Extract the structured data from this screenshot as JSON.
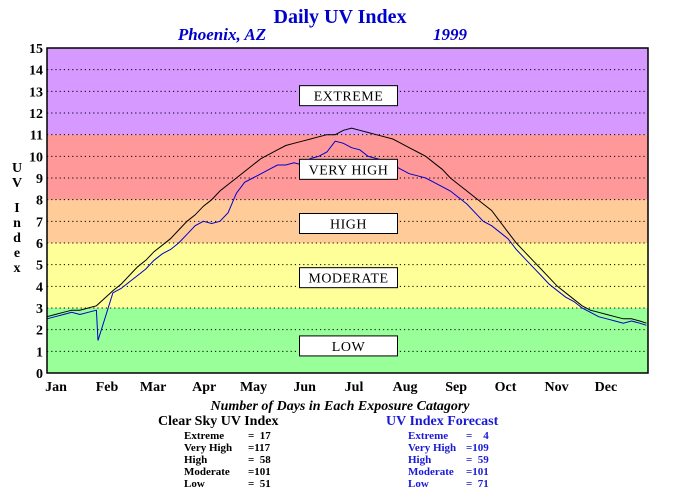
{
  "header": {
    "title": "Daily UV Index",
    "location": "Phoenix, AZ",
    "year": "1999"
  },
  "chart_data": {
    "type": "line",
    "title": "Daily UV Index",
    "ylabel": "UV Index",
    "xlabel": "",
    "xlim": [
      0,
      365
    ],
    "ylim": [
      0,
      15
    ],
    "y_ticks": [
      0,
      1,
      2,
      3,
      4,
      5,
      6,
      7,
      8,
      9,
      10,
      11,
      12,
      13,
      14,
      15
    ],
    "months": [
      {
        "label": "Jan",
        "day": 0
      },
      {
        "label": "Feb",
        "day": 31
      },
      {
        "label": "Mar",
        "day": 59
      },
      {
        "label": "Apr",
        "day": 90
      },
      {
        "label": "May",
        "day": 120
      },
      {
        "label": "Jun",
        "day": 151
      },
      {
        "label": "Jul",
        "day": 181
      },
      {
        "label": "Aug",
        "day": 212
      },
      {
        "label": "Sep",
        "day": 243
      },
      {
        "label": "Oct",
        "day": 273
      },
      {
        "label": "Nov",
        "day": 304
      },
      {
        "label": "Dec",
        "day": 334
      }
    ],
    "grid": "dotted horizontal at each integer",
    "bands": [
      {
        "label": "LOW",
        "from": 0,
        "to": 3,
        "color": "#99ff99",
        "label_y": 1.25
      },
      {
        "label": "MODERATE",
        "from": 3,
        "to": 6,
        "color": "#ffff99",
        "label_y": 4.4
      },
      {
        "label": "HIGH",
        "from": 6,
        "to": 8,
        "color": "#ffcc99",
        "label_y": 6.9
      },
      {
        "label": "VERY HIGH",
        "from": 8,
        "to": 11,
        "color": "#ff9999",
        "label_y": 9.4
      },
      {
        "label": "EXTREME",
        "from": 11,
        "to": 15,
        "color": "#d699ff",
        "label_y": 12.8
      }
    ],
    "series": [
      {
        "name": "Clear Sky UV Index",
        "color": "#000000",
        "points": [
          [
            0,
            2.6
          ],
          [
            5,
            2.7
          ],
          [
            10,
            2.8
          ],
          [
            15,
            2.9
          ],
          [
            20,
            2.9
          ],
          [
            25,
            3.0
          ],
          [
            30,
            3.1
          ],
          [
            40,
            3.8
          ],
          [
            45,
            4.1
          ],
          [
            50,
            4.5
          ],
          [
            55,
            4.9
          ],
          [
            60,
            5.2
          ],
          [
            65,
            5.6
          ],
          [
            70,
            5.9
          ],
          [
            75,
            6.2
          ],
          [
            80,
            6.6
          ],
          [
            85,
            7.0
          ],
          [
            90,
            7.3
          ],
          [
            95,
            7.7
          ],
          [
            100,
            8.0
          ],
          [
            105,
            8.4
          ],
          [
            110,
            8.7
          ],
          [
            115,
            9.0
          ],
          [
            120,
            9.3
          ],
          [
            125,
            9.6
          ],
          [
            130,
            9.9
          ],
          [
            135,
            10.1
          ],
          [
            140,
            10.3
          ],
          [
            145,
            10.5
          ],
          [
            150,
            10.6
          ],
          [
            155,
            10.7
          ],
          [
            160,
            10.8
          ],
          [
            165,
            10.9
          ],
          [
            170,
            11.0
          ],
          [
            175,
            11.0
          ],
          [
            180,
            11.2
          ],
          [
            185,
            11.3
          ],
          [
            190,
            11.2
          ],
          [
            195,
            11.1
          ],
          [
            200,
            11.0
          ],
          [
            205,
            10.9
          ],
          [
            210,
            10.8
          ],
          [
            215,
            10.6
          ],
          [
            220,
            10.4
          ],
          [
            225,
            10.2
          ],
          [
            230,
            10.0
          ],
          [
            235,
            9.7
          ],
          [
            240,
            9.4
          ],
          [
            245,
            9.0
          ],
          [
            250,
            8.7
          ],
          [
            255,
            8.4
          ],
          [
            260,
            8.1
          ],
          [
            265,
            7.8
          ],
          [
            270,
            7.5
          ],
          [
            275,
            7.0
          ],
          [
            280,
            6.5
          ],
          [
            285,
            6.0
          ],
          [
            290,
            5.6
          ],
          [
            295,
            5.2
          ],
          [
            300,
            4.8
          ],
          [
            305,
            4.4
          ],
          [
            310,
            4.0
          ],
          [
            315,
            3.7
          ],
          [
            320,
            3.4
          ],
          [
            325,
            3.1
          ],
          [
            330,
            2.9
          ],
          [
            335,
            2.8
          ],
          [
            340,
            2.7
          ],
          [
            345,
            2.6
          ],
          [
            350,
            2.5
          ],
          [
            355,
            2.5
          ],
          [
            360,
            2.4
          ],
          [
            364,
            2.3
          ]
        ]
      },
      {
        "name": "UV Index Forecast",
        "color": "#0000cc",
        "points": [
          [
            0,
            2.5
          ],
          [
            5,
            2.6
          ],
          [
            10,
            2.7
          ],
          [
            15,
            2.8
          ],
          [
            20,
            2.7
          ],
          [
            25,
            2.8
          ],
          [
            30,
            2.9
          ],
          [
            31,
            1.5
          ],
          [
            40,
            3.7
          ],
          [
            45,
            3.9
          ],
          [
            50,
            4.2
          ],
          [
            55,
            4.5
          ],
          [
            60,
            4.8
          ],
          [
            65,
            5.2
          ],
          [
            70,
            5.5
          ],
          [
            75,
            5.7
          ],
          [
            80,
            6.0
          ],
          [
            85,
            6.4
          ],
          [
            90,
            6.8
          ],
          [
            95,
            7.0
          ],
          [
            100,
            6.9
          ],
          [
            105,
            7.0
          ],
          [
            110,
            7.4
          ],
          [
            115,
            8.3
          ],
          [
            120,
            8.8
          ],
          [
            125,
            9.0
          ],
          [
            130,
            9.2
          ],
          [
            135,
            9.4
          ],
          [
            140,
            9.6
          ],
          [
            145,
            9.6
          ],
          [
            150,
            9.7
          ],
          [
            155,
            9.6
          ],
          [
            160,
            9.9
          ],
          [
            165,
            10.0
          ],
          [
            170,
            10.2
          ],
          [
            175,
            10.7
          ],
          [
            180,
            10.6
          ],
          [
            185,
            10.4
          ],
          [
            190,
            10.3
          ],
          [
            195,
            10.0
          ],
          [
            200,
            9.9
          ],
          [
            205,
            9.8
          ],
          [
            210,
            9.6
          ],
          [
            215,
            9.4
          ],
          [
            220,
            9.2
          ],
          [
            225,
            9.1
          ],
          [
            230,
            9.0
          ],
          [
            235,
            8.8
          ],
          [
            240,
            8.6
          ],
          [
            245,
            8.4
          ],
          [
            250,
            8.1
          ],
          [
            255,
            7.8
          ],
          [
            260,
            7.4
          ],
          [
            265,
            7.0
          ],
          [
            270,
            6.8
          ],
          [
            275,
            6.5
          ],
          [
            280,
            6.2
          ],
          [
            285,
            5.7
          ],
          [
            290,
            5.3
          ],
          [
            295,
            4.9
          ],
          [
            300,
            4.5
          ],
          [
            305,
            4.1
          ],
          [
            310,
            3.8
          ],
          [
            315,
            3.5
          ],
          [
            320,
            3.3
          ],
          [
            325,
            3.0
          ],
          [
            330,
            2.8
          ],
          [
            335,
            2.6
          ],
          [
            340,
            2.5
          ],
          [
            345,
            2.4
          ],
          [
            350,
            2.3
          ],
          [
            355,
            2.4
          ],
          [
            360,
            2.3
          ],
          [
            364,
            2.2
          ]
        ]
      }
    ]
  },
  "footnote": "Number of Days in Each Exposure Catagory",
  "stats": {
    "clear_sky": {
      "heading": "Clear Sky UV Index",
      "rows": [
        {
          "label": "Extreme",
          "value": "=  17"
        },
        {
          "label": "Very High",
          "value": "=117"
        },
        {
          "label": "High",
          "value": "=  58"
        },
        {
          "label": "Moderate",
          "value": "=101"
        },
        {
          "label": "Low",
          "value": "=  51"
        }
      ]
    },
    "forecast": {
      "heading": "UV Index Forecast",
      "rows": [
        {
          "label": "Extreme",
          "value": "=    4"
        },
        {
          "label": "Very High",
          "value": "=109"
        },
        {
          "label": "High",
          "value": "=  59"
        },
        {
          "label": "Moderate",
          "value": "=101"
        },
        {
          "label": "Low",
          "value": "=  71"
        }
      ]
    }
  }
}
